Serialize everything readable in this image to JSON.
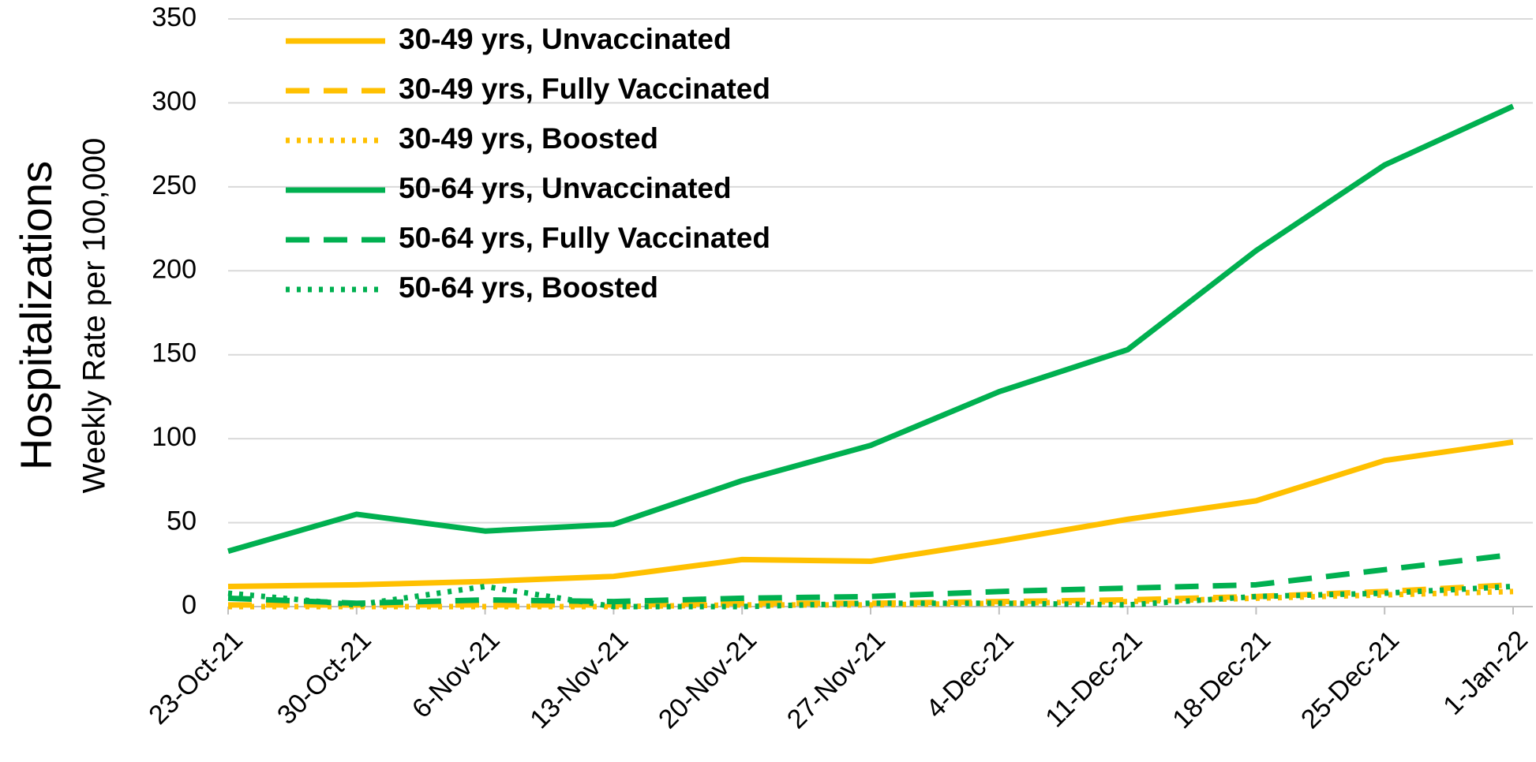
{
  "chart_data": {
    "type": "line",
    "title_y": "Hospitalizations",
    "y_label": "Weekly Rate per 100,000",
    "categories": [
      "23-Oct-21",
      "30-Oct-21",
      "6-Nov-21",
      "13-Nov-21",
      "20-Nov-21",
      "27-Nov-21",
      "4-Dec-21",
      "11-Dec-21",
      "18-Dec-21",
      "25-Dec-21",
      "1-Jan-22"
    ],
    "series": [
      {
        "name": "30-49 yrs, Unvaccinated",
        "color": "#FFC000",
        "dash": "solid",
        "values": [
          12,
          13,
          15,
          18,
          28,
          27,
          39,
          52,
          63,
          87,
          98
        ]
      },
      {
        "name": "30-49 yrs, Fully Vaccinated",
        "color": "#FFC000",
        "dash": "dashed",
        "values": [
          1,
          1,
          1,
          1,
          2,
          2,
          3,
          4,
          6,
          9,
          13
        ]
      },
      {
        "name": "30-49 yrs, Boosted",
        "color": "#FFC000",
        "dash": "dotted",
        "values": [
          0,
          0,
          0,
          0,
          1,
          1,
          2,
          3,
          5,
          7,
          9
        ]
      },
      {
        "name": "50-64 yrs, Unvaccinated",
        "color": "#00B050",
        "dash": "solid",
        "values": [
          33,
          55,
          45,
          49,
          75,
          96,
          128,
          153,
          212,
          263,
          298
        ]
      },
      {
        "name": "50-64 yrs, Fully Vaccinated",
        "color": "#00B050",
        "dash": "dashed",
        "values": [
          5,
          2,
          4,
          3,
          5,
          6,
          9,
          11,
          13,
          22,
          31
        ]
      },
      {
        "name": "50-64 yrs, Boosted",
        "color": "#00B050",
        "dash": "dotted",
        "values": [
          8,
          1,
          12,
          0,
          0,
          2,
          2,
          1,
          6,
          8,
          12
        ]
      }
    ],
    "ylim": [
      0,
      350
    ],
    "yticks": [
      0,
      50,
      100,
      150,
      200,
      250,
      300,
      350
    ],
    "grid": true,
    "legend": "top-left"
  }
}
